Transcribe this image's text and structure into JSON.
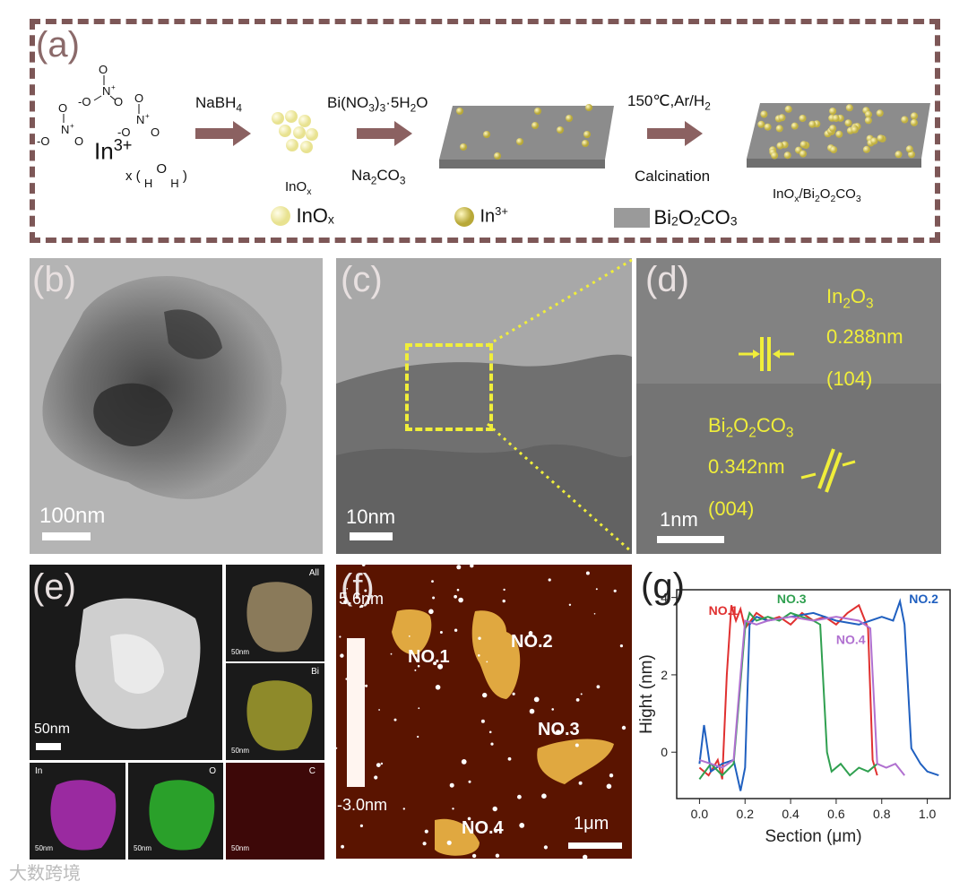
{
  "panels": {
    "a": {
      "label": "(a)",
      "ion": "In",
      "ion_charge": "3+",
      "water_prefix": "x (",
      "water_h1": "H",
      "water_o": "O",
      "water_h2": "H",
      "water_suffix": ")",
      "step1_reagent": "NaBH",
      "step1_sub": "4",
      "product1": "InO",
      "product1_sub": "x",
      "step2_reagent": "Bi(NO",
      "step2_sub3": "3",
      "step2_mid": ")",
      "step2_sub": "3",
      "step2_rest": "·5H",
      "step2_sub2": "2",
      "step2_tail": "O",
      "step2_extra": "Na",
      "step2_extra_sub": "2",
      "step2_extra_tail": "CO",
      "step2_extra_sub2": "3",
      "step3_reagent": "150℃,Ar/H",
      "step3_sub": "2",
      "step3_note": "Calcination",
      "product_final": "InO",
      "product_final_rest": "/Bi",
      "product_final_2": "O",
      "product_final_3": "CO",
      "legend": [
        {
          "name": "InO",
          "sub": "x",
          "color": "#f3f0a8"
        },
        {
          "name": "In",
          "sup": "3+",
          "color": "#c8b84a"
        },
        {
          "name": "Bi",
          "rest": "O",
          "rest2": "CO",
          "color": "#9a9a9a"
        }
      ]
    },
    "b": {
      "label": "(b)",
      "scale": "100nm"
    },
    "c": {
      "label": "(c)",
      "scale": "10nm"
    },
    "d": {
      "label": "(d)",
      "scale": "1nm",
      "phase1": "In",
      "phase1_sub1": "2",
      "phase1_mid": "O",
      "phase1_sub2": "3",
      "d1": "0.288nm",
      "hkl1": "(104)",
      "phase2": "Bi",
      "phase2_sub1": "2",
      "phase2_mid": "O",
      "phase2_sub2": "2",
      "phase2_tail": "CO",
      "phase2_sub3": "3",
      "d2": "0.342nm",
      "hkl2": "(004)"
    },
    "e": {
      "label": "(e)",
      "scale": "50nm",
      "maps": [
        {
          "element": "All",
          "scale": "50nm"
        },
        {
          "element": "Bi",
          "scale": "50nm"
        },
        {
          "element": "In",
          "scale": "50nm"
        },
        {
          "element": "O",
          "scale": "50nm"
        },
        {
          "element": "C",
          "scale": "50nm"
        }
      ]
    },
    "f": {
      "label": "(f)",
      "zmax": "5.6nm",
      "zmin": "-3.0nm",
      "scale": "1μm",
      "flakes": [
        "NO.1",
        "NO.2",
        "NO.3",
        "NO.4"
      ]
    },
    "g": {
      "label": "(g)"
    }
  },
  "watermark": "大数跨境",
  "chart_data": {
    "type": "line",
    "title": "",
    "xlabel": "Section (μm)",
    "ylabel": "Hight (nm)",
    "xlim": [
      -0.1,
      1.1
    ],
    "ylim": [
      -1.2,
      4.2
    ],
    "xticks": [
      "0.0",
      "0.2",
      "0.4",
      "0.6",
      "0.8",
      "1.0"
    ],
    "yticks": [
      "0",
      "2",
      "4"
    ],
    "legend_placement": "inline labels near curves",
    "series": [
      {
        "name": "NO.1",
        "color": "#e03030",
        "x": [
          0.0,
          0.04,
          0.08,
          0.1,
          0.12,
          0.14,
          0.16,
          0.18,
          0.2,
          0.25,
          0.3,
          0.35,
          0.4,
          0.45,
          0.5,
          0.55,
          0.6,
          0.65,
          0.7,
          0.74,
          0.76,
          0.78
        ],
        "y": [
          -0.4,
          -0.6,
          -0.2,
          -0.7,
          2.0,
          3.8,
          3.4,
          3.7,
          3.2,
          3.6,
          3.4,
          3.5,
          3.3,
          3.6,
          3.4,
          3.5,
          3.3,
          3.6,
          3.8,
          3.2,
          -0.2,
          -0.6
        ]
      },
      {
        "name": "NO.2",
        "color": "#2060c0",
        "x": [
          0.0,
          0.02,
          0.05,
          0.1,
          0.15,
          0.18,
          0.2,
          0.22,
          0.25,
          0.3,
          0.4,
          0.5,
          0.6,
          0.7,
          0.8,
          0.85,
          0.88,
          0.9,
          0.93,
          0.97,
          1.0,
          1.05
        ],
        "y": [
          -0.3,
          0.7,
          -0.5,
          -0.3,
          -0.2,
          -1.0,
          -0.4,
          3.3,
          3.5,
          3.4,
          3.5,
          3.6,
          3.4,
          3.3,
          3.5,
          3.4,
          3.9,
          3.3,
          0.1,
          -0.3,
          -0.5,
          -0.6
        ]
      },
      {
        "name": "NO.3",
        "color": "#30a050",
        "x": [
          0.0,
          0.05,
          0.1,
          0.15,
          0.2,
          0.22,
          0.25,
          0.3,
          0.35,
          0.4,
          0.45,
          0.5,
          0.53,
          0.56,
          0.58,
          0.62,
          0.66,
          0.7,
          0.74,
          0.78
        ],
        "y": [
          -0.7,
          -0.3,
          -0.6,
          -0.3,
          3.2,
          3.6,
          3.4,
          3.5,
          3.4,
          3.6,
          3.5,
          3.4,
          3.3,
          0.0,
          -0.5,
          -0.3,
          -0.6,
          -0.4,
          -0.5,
          -0.3
        ]
      },
      {
        "name": "NO.4",
        "color": "#b070d0",
        "x": [
          0.0,
          0.05,
          0.1,
          0.15,
          0.18,
          0.2,
          0.25,
          0.3,
          0.4,
          0.5,
          0.6,
          0.7,
          0.75,
          0.78,
          0.82,
          0.86,
          0.9
        ],
        "y": [
          -0.2,
          -0.3,
          -0.4,
          -0.2,
          2.0,
          3.4,
          3.3,
          3.4,
          3.5,
          3.4,
          3.5,
          3.4,
          3.2,
          -0.3,
          -0.4,
          -0.3,
          -0.6
        ]
      }
    ]
  }
}
